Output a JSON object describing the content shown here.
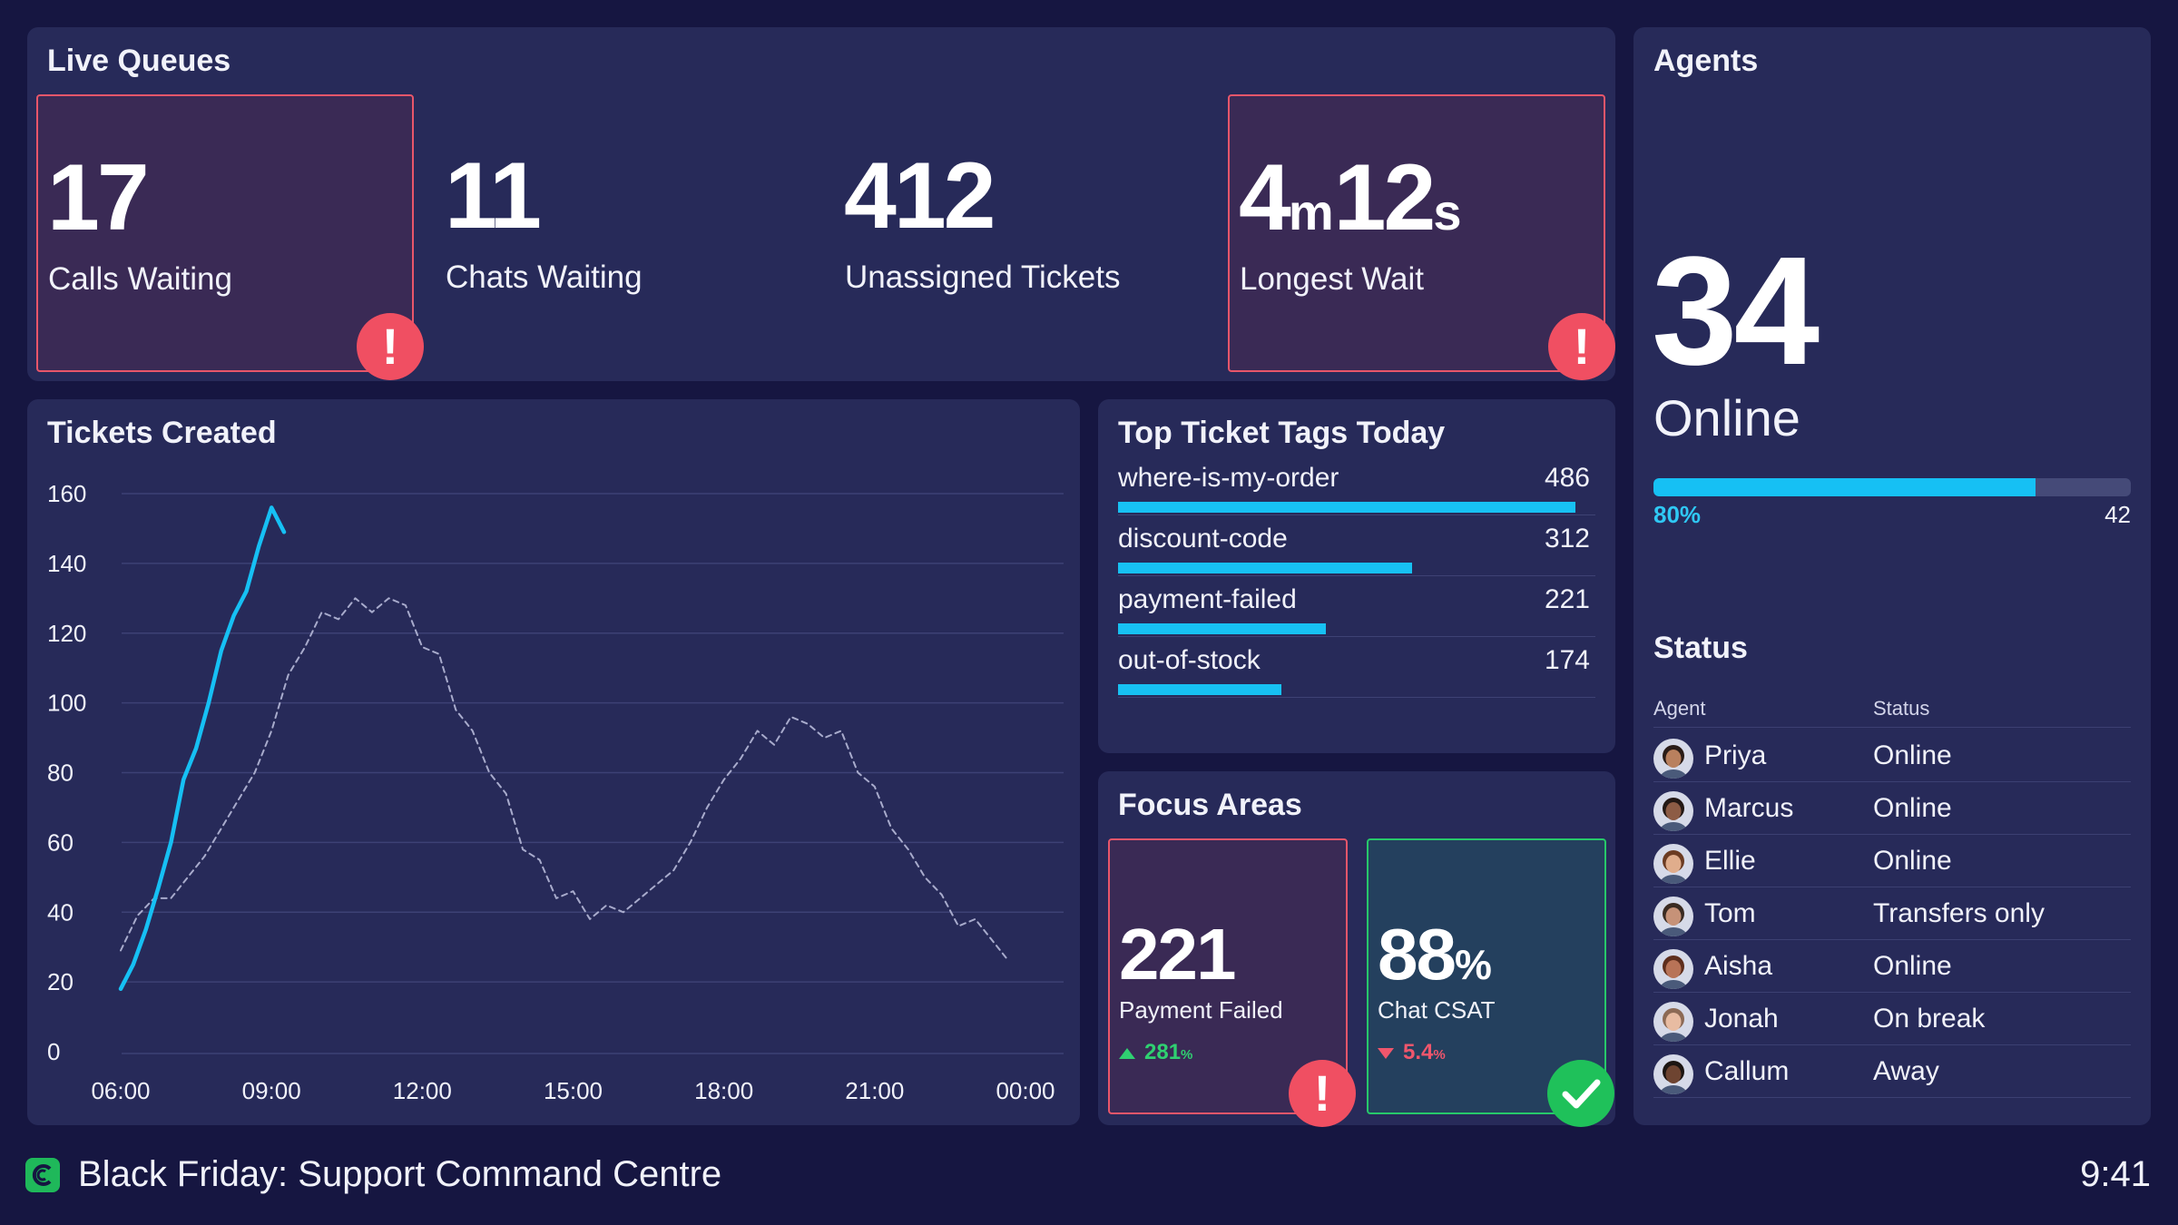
{
  "live_queues": {
    "title": "Live Queues",
    "stats": [
      {
        "value": "17",
        "label": "Calls Waiting",
        "alert": true
      },
      {
        "value": "11",
        "label": "Chats Waiting",
        "alert": false
      },
      {
        "value": "412",
        "label": "Unassigned Tickets",
        "alert": false
      },
      {
        "value_parts": [
          "4",
          "m",
          "12",
          "s"
        ],
        "label": "Longest Wait",
        "alert": true
      }
    ],
    "alert_glyph": "!"
  },
  "agents": {
    "title": "Agents",
    "online_count": "34",
    "online_label": "Online",
    "online_fraction": 0.8,
    "percent_label": "80%",
    "total_label": "42",
    "status_title": "Status",
    "status_headers": [
      "Agent",
      "Status"
    ],
    "rows": [
      {
        "name": "Priya",
        "status": "Online",
        "avatar_skin": "#b9805e",
        "avatar_hair": "#2a1c17"
      },
      {
        "name": "Marcus",
        "status": "Online",
        "avatar_skin": "#8d5c45",
        "avatar_hair": "#231814"
      },
      {
        "name": "Ellie",
        "status": "Online",
        "avatar_skin": "#e0ad8c",
        "avatar_hair": "#6b3b22"
      },
      {
        "name": "Tom",
        "status": "Transfers only",
        "avatar_skin": "#c69278",
        "avatar_hair": "#3a2b22"
      },
      {
        "name": "Aisha",
        "status": "Online",
        "avatar_skin": "#b87357",
        "avatar_hair": "#5e2e1d"
      },
      {
        "name": "Jonah",
        "status": "On break",
        "avatar_skin": "#e8bca2",
        "avatar_hair": "#8c6a55"
      },
      {
        "name": "Callum",
        "status": "Away",
        "avatar_skin": "#6e4431",
        "avatar_hair": "#1c1512"
      }
    ]
  },
  "tickets_created": {
    "title": "Tickets Created"
  },
  "chart_data": {
    "type": "line",
    "title": "Tickets Created",
    "xlabel": "",
    "ylabel": "",
    "ylim": [
      0,
      160
    ],
    "yticks": [
      0,
      20,
      40,
      60,
      80,
      100,
      120,
      140,
      160
    ],
    "xlim": [
      "06:00",
      "00:00"
    ],
    "xticks": [
      "06:00",
      "09:00",
      "12:00",
      "15:00",
      "18:00",
      "21:00",
      "00:00"
    ],
    "grid": true,
    "series": [
      {
        "style": "solid",
        "color": "#16c0f4",
        "points": [
          [
            "06:00",
            18
          ],
          [
            "06:15",
            25
          ],
          [
            "06:30",
            35
          ],
          [
            "06:45",
            47
          ],
          [
            "07:00",
            60
          ],
          [
            "07:15",
            78
          ],
          [
            "07:30",
            87
          ],
          [
            "07:45",
            100
          ],
          [
            "08:00",
            115
          ],
          [
            "08:15",
            125
          ],
          [
            "08:30",
            132
          ],
          [
            "08:45",
            145
          ],
          [
            "09:00",
            156
          ],
          [
            "09:15",
            149
          ]
        ]
      },
      {
        "style": "dashed",
        "color": "#a8abcc",
        "points": [
          [
            "06:00",
            29
          ],
          [
            "06:20",
            39
          ],
          [
            "06:40",
            44
          ],
          [
            "07:00",
            44
          ],
          [
            "07:20",
            50
          ],
          [
            "07:40",
            56
          ],
          [
            "08:00",
            64
          ],
          [
            "08:20",
            72
          ],
          [
            "08:40",
            80
          ],
          [
            "09:00",
            92
          ],
          [
            "09:20",
            108
          ],
          [
            "09:40",
            116
          ],
          [
            "10:00",
            126
          ],
          [
            "10:20",
            124
          ],
          [
            "10:40",
            130
          ],
          [
            "11:00",
            126
          ],
          [
            "11:20",
            130
          ],
          [
            "11:40",
            128
          ],
          [
            "12:00",
            116
          ],
          [
            "12:20",
            114
          ],
          [
            "12:40",
            98
          ],
          [
            "13:00",
            92
          ],
          [
            "13:20",
            80
          ],
          [
            "13:40",
            74
          ],
          [
            "14:00",
            58
          ],
          [
            "14:20",
            55
          ],
          [
            "14:40",
            44
          ],
          [
            "15:00",
            46
          ],
          [
            "15:20",
            38
          ],
          [
            "15:40",
            42
          ],
          [
            "16:00",
            40
          ],
          [
            "16:20",
            44
          ],
          [
            "16:40",
            48
          ],
          [
            "17:00",
            52
          ],
          [
            "17:20",
            60
          ],
          [
            "17:40",
            70
          ],
          [
            "18:00",
            78
          ],
          [
            "18:20",
            84
          ],
          [
            "18:40",
            92
          ],
          [
            "19:00",
            88
          ],
          [
            "19:20",
            96
          ],
          [
            "19:40",
            94
          ],
          [
            "20:00",
            90
          ],
          [
            "20:20",
            92
          ],
          [
            "20:40",
            80
          ],
          [
            "21:00",
            76
          ],
          [
            "21:20",
            64
          ],
          [
            "21:40",
            58
          ],
          [
            "22:00",
            50
          ],
          [
            "22:20",
            45
          ],
          [
            "22:40",
            36
          ],
          [
            "23:00",
            38
          ],
          [
            "23:20",
            32
          ],
          [
            "23:40",
            26
          ]
        ]
      }
    ]
  },
  "top_tags": {
    "title": "Top Ticket Tags Today",
    "max": 486,
    "bar_color": "#17c1f3",
    "items": [
      {
        "name": "where-is-my-order",
        "value": 486
      },
      {
        "name": "discount-code",
        "value": 312
      },
      {
        "name": "payment-failed",
        "value": 221
      },
      {
        "name": "out-of-stock",
        "value": 174
      }
    ]
  },
  "focus_areas": {
    "title": "Focus Areas",
    "items": [
      {
        "value": "221",
        "unit": "",
        "label": "Payment Failed",
        "delta": "281",
        "delta_unit": "%",
        "direction": "up",
        "state": "alert"
      },
      {
        "value": "88",
        "unit": "%",
        "label": "Chat CSAT",
        "delta": "5.4",
        "delta_unit": "%",
        "direction": "down",
        "state": "ok"
      }
    ]
  },
  "footer": {
    "title": "Black Friday: Support Command Centre",
    "time": "9:41"
  },
  "colors": {
    "background": "#161641",
    "panel": "#272a59",
    "alert_red": "#f04f62",
    "ok_green": "#1fc15a",
    "accent_cyan": "#16c0f4"
  }
}
